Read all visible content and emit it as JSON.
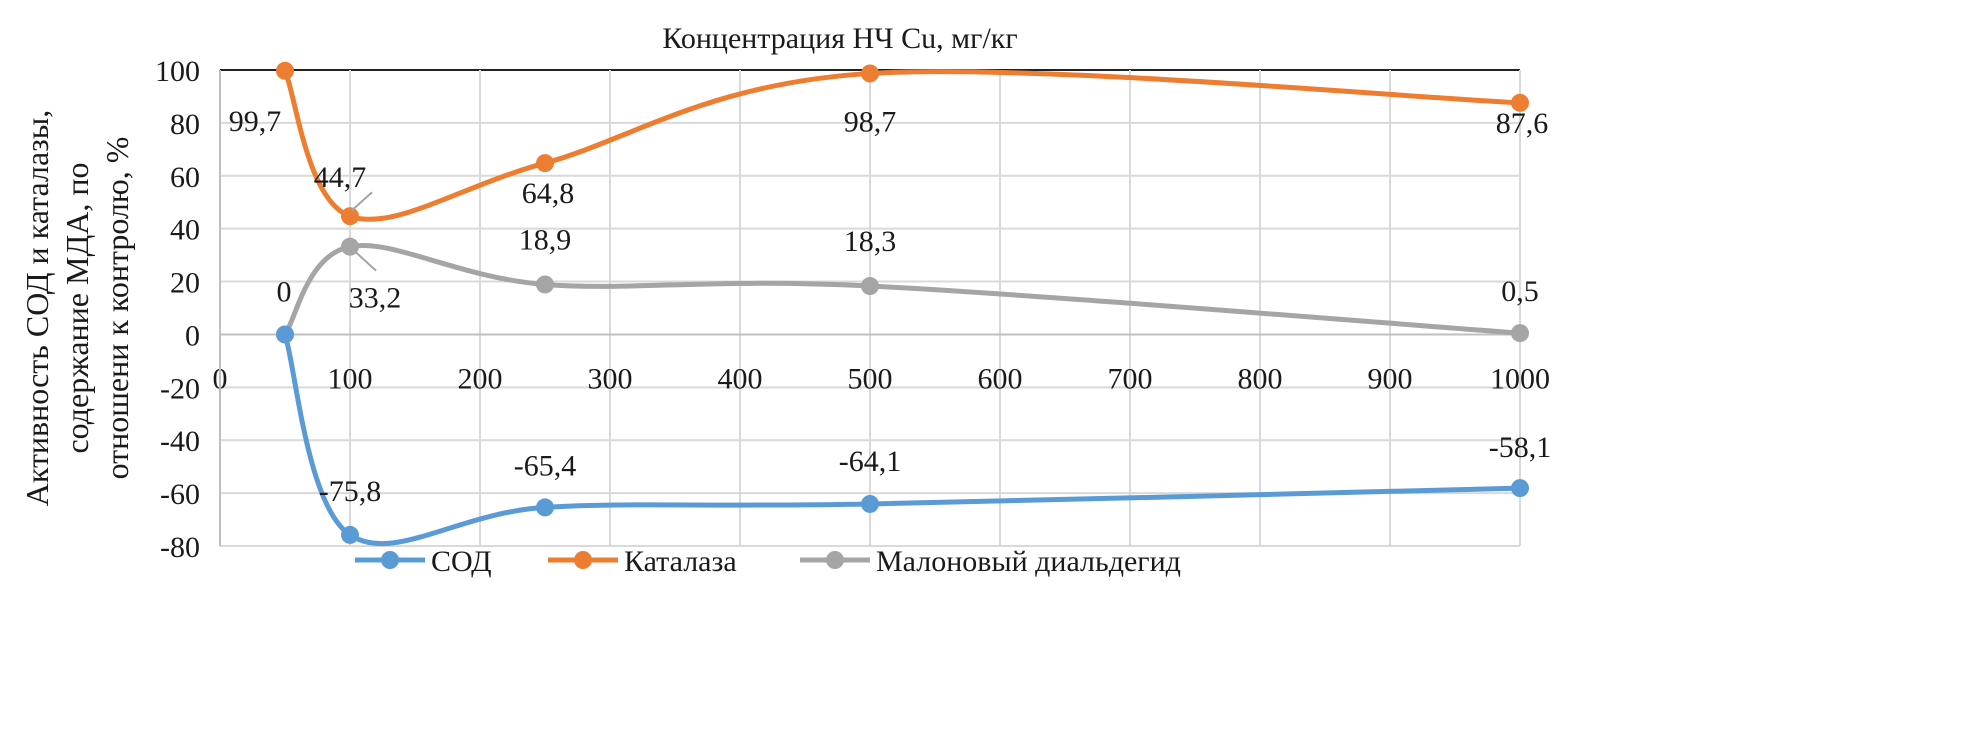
{
  "chart_data": {
    "type": "line",
    "title": "Концентрация НЧ Cu, мг/кг",
    "ylabel_lines": [
      "Активность СОД и каталазы,",
      "содержание МДА, по",
      "отношени к контролю, %"
    ],
    "xlim": [
      0,
      1000
    ],
    "ylim": [
      -80,
      100
    ],
    "xticks": [
      0,
      100,
      200,
      300,
      400,
      500,
      600,
      700,
      800,
      900,
      1000
    ],
    "yticks": [
      100,
      80,
      60,
      40,
      20,
      0,
      -20,
      -40,
      -60,
      -80
    ],
    "grid": true,
    "smooth": true,
    "legend_position": "bottom",
    "x": [
      50,
      100,
      250,
      500,
      1000
    ],
    "series": [
      {
        "name": "СОД",
        "color": "#5b9bd5",
        "values": [
          0,
          -75.8,
          -65.4,
          -64.1,
          -58.1
        ],
        "labels": [
          "",
          "-75,8",
          "-65,4",
          "-64,1",
          "-58,1"
        ]
      },
      {
        "name": "Каталаза",
        "color": "#ed7d31",
        "values": [
          99.7,
          44.7,
          64.8,
          98.7,
          87.6
        ],
        "labels": [
          "99,7",
          "44,7",
          "64,8",
          "98,7",
          "87,6"
        ]
      },
      {
        "name": "Малоновый диальдегид",
        "color": "#a5a5a5",
        "values": [
          0,
          33.2,
          18.9,
          18.3,
          0.5
        ],
        "labels": [
          "0",
          "33,2",
          "18,9",
          "18,3",
          "0,5"
        ]
      }
    ]
  }
}
